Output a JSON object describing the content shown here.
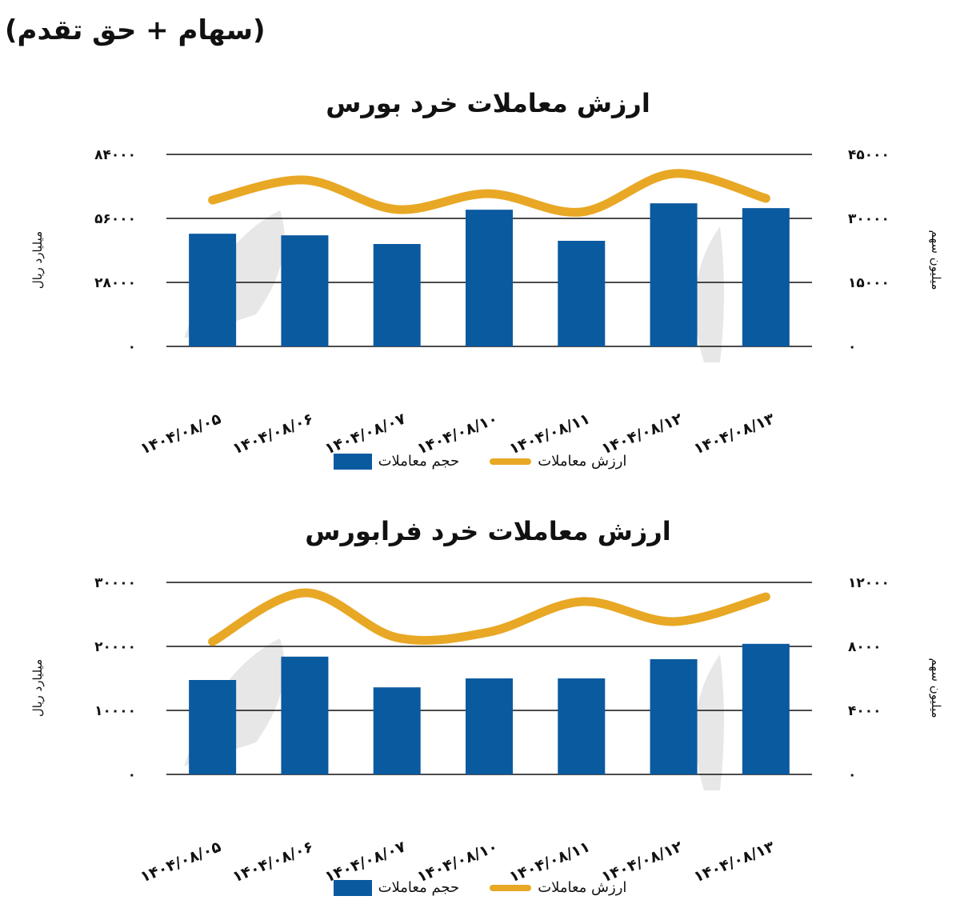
{
  "page": {
    "subtitle": "(سهام + حق تقدم)"
  },
  "colors": {
    "bar": "#0A5AA0",
    "line": "#E8A825",
    "grid": "#111111",
    "watermark": "#E4E4E4"
  },
  "legend": {
    "value_label": "ارزش معاملات",
    "volume_label": "حجم معاملات"
  },
  "chart_data": [
    {
      "type": "bar",
      "title": "ارزش معاملات خرد بورس",
      "categories": [
        "۱۴۰۴/۰۸/۰۵",
        "۱۴۰۴/۰۸/۰۶",
        "۱۴۰۴/۰۸/۰۷",
        "۱۴۰۴/۰۸/۱۰",
        "۱۴۰۴/۰۸/۱۱",
        "۱۴۰۴/۰۸/۱۲",
        "۱۴۰۴/۰۸/۱۳"
      ],
      "series": [
        {
          "name": "حجم معاملات",
          "type": "bar",
          "axis": "left",
          "values": [
            49300,
            48600,
            44800,
            59800,
            46200,
            62600,
            60500
          ]
        },
        {
          "name": "ارزش معاملات",
          "type": "line",
          "axis": "right",
          "values": [
            34300,
            39000,
            32100,
            35800,
            31500,
            40500,
            34700
          ]
        }
      ],
      "ylabel": "میلیارد ریال",
      "ylabel_right": "میلیون سهم",
      "ylim": [
        0,
        84000
      ],
      "ylim_right": [
        0,
        45000
      ],
      "yticks": [
        "۰",
        "۲۸۰۰۰",
        "۵۶۰۰۰",
        "۸۴۰۰۰"
      ],
      "yticks_right": [
        "۰",
        "۱۵۰۰۰",
        "۳۰۰۰۰",
        "۴۵۰۰۰"
      ],
      "grid": true,
      "legend_position": "bottom"
    },
    {
      "type": "bar",
      "title": "ارزش معاملات خرد فرابورس",
      "categories": [
        "۱۴۰۴/۰۸/۰۵",
        "۱۴۰۴/۰۸/۰۶",
        "۱۴۰۴/۰۸/۰۷",
        "۱۴۰۴/۰۸/۱۰",
        "۱۴۰۴/۰۸/۱۱",
        "۱۴۰۴/۰۸/۱۲",
        "۱۴۰۴/۰۸/۱۳"
      ],
      "series": [
        {
          "name": "حجم معاملات",
          "type": "bar",
          "axis": "left",
          "values": [
            14750,
            18400,
            13600,
            15000,
            15000,
            18000,
            20400
          ]
        },
        {
          "name": "ارزش معاملات",
          "type": "line",
          "axis": "right",
          "values": [
            8300,
            11350,
            8550,
            8900,
            10800,
            9550,
            11100
          ]
        }
      ],
      "ylabel": "میلیارد ریال",
      "ylabel_right": "میلیون سهم",
      "ylim": [
        0,
        30000
      ],
      "ylim_right": [
        0,
        12000
      ],
      "yticks": [
        "۰",
        "۱۰۰۰۰",
        "۲۰۰۰۰",
        "۳۰۰۰۰"
      ],
      "yticks_right": [
        "۰",
        "۴۰۰۰",
        "۸۰۰۰",
        "۱۲۰۰۰"
      ],
      "grid": true,
      "legend_position": "bottom"
    }
  ]
}
